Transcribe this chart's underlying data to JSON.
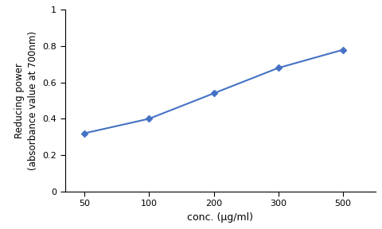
{
  "x_positions": [
    0,
    1,
    2,
    3,
    4
  ],
  "x_labels": [
    "50",
    "100",
    "200",
    "300",
    "500"
  ],
  "y": [
    0.32,
    0.4,
    0.54,
    0.68,
    0.78
  ],
  "line_color": "#4472C4",
  "marker": "D",
  "marker_size": 4,
  "marker_facecolor": "#4472C4",
  "marker_edgecolor": "#4472C4",
  "line_width": 1.5,
  "xlabel": "conc. (μg/ml)",
  "ylabel": "Reducing power\n(absorbance value at 700nm)",
  "xlim": [
    -0.3,
    4.5
  ],
  "ylim": [
    0,
    1.0
  ],
  "yticks": [
    0,
    0.2,
    0.4,
    0.6,
    0.8,
    1.0
  ],
  "xlabel_fontsize": 9,
  "ylabel_fontsize": 8.5,
  "tick_fontsize": 8,
  "background_color": "#ffffff"
}
